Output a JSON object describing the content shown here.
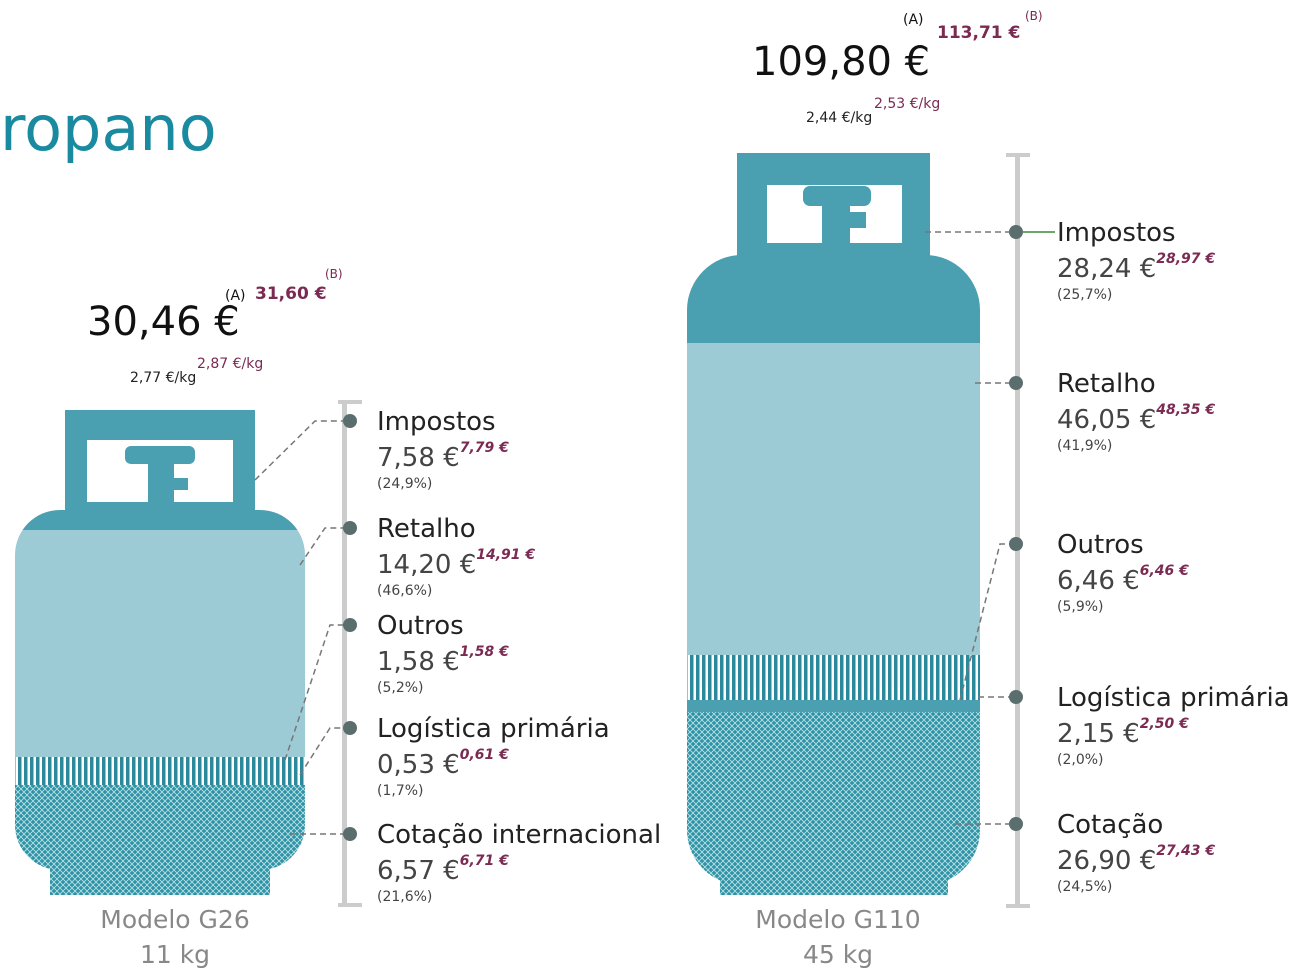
{
  "title": "ropano",
  "cylinders": [
    {
      "model": "Modelo G26",
      "weight": "11 kg",
      "price_a_marker": "(A)",
      "price_a": "30,46 €",
      "price_b_marker": "(B)",
      "price_b": "31,60 €",
      "per_kg_a": "2,77 €/kg",
      "per_kg_b": "2,87 €/kg",
      "components": [
        {
          "name": "Impostos",
          "value_a": "7,58 €",
          "value_b": "7,79 €",
          "share": "(24,9%)"
        },
        {
          "name": "Retalho",
          "value_a": "14,20 €",
          "value_b": "14,91 €",
          "share": "(46,6%)"
        },
        {
          "name": "Outros",
          "value_a": "1,58 €",
          "value_b": "1,58 €",
          "share": "(5,2%)"
        },
        {
          "name": "Logística primária",
          "value_a": "0,53 €",
          "value_b": "0,61 €",
          "share": "(1,7%)"
        },
        {
          "name": "Cotação internacional",
          "value_a": "6,57 €",
          "value_b": "6,71 €",
          "share": "(21,6%)"
        }
      ]
    },
    {
      "model": "Modelo G110",
      "weight": "45 kg",
      "price_a_marker": "(A)",
      "price_a": "109,80 €",
      "price_b_marker": "(B)",
      "price_b": "113,71 €",
      "per_kg_a": "2,44 €/kg",
      "per_kg_b": "2,53 €/kg",
      "components": [
        {
          "name": "Impostos",
          "value_a": "28,24 €",
          "value_b": "28,97 €",
          "share": "(25,7%)"
        },
        {
          "name": "Retalho",
          "value_a": "46,05 €",
          "value_b": "48,35 €",
          "share": "(41,9%)"
        },
        {
          "name": "Outros",
          "value_a": "6,46 €",
          "value_b": "6,46 €",
          "share": "(5,9%)"
        },
        {
          "name": "Logística primária",
          "value_a": "2,15 €",
          "value_b": "2,50 €",
          "share": "(2,0%)"
        },
        {
          "name": "Cotação",
          "value_a": "26,90 €",
          "value_b": "27,43 €",
          "share": "(24,5%)"
        }
      ]
    }
  ]
}
